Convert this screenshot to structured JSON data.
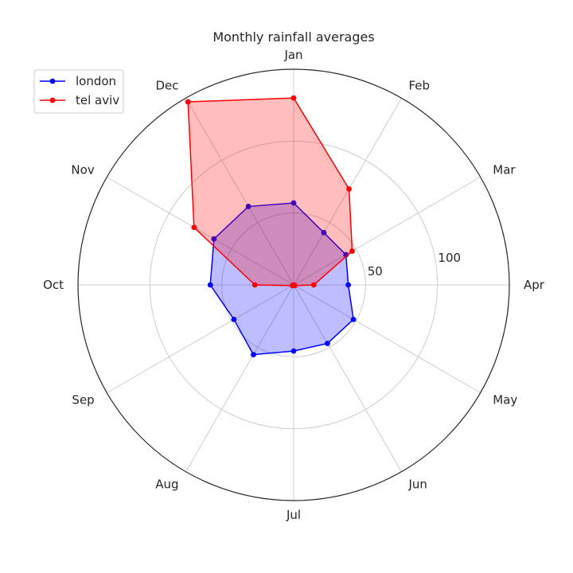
{
  "chart_data": {
    "type": "radar",
    "title": "Monthly rainfall averages",
    "categories": [
      "Jan",
      "Feb",
      "Mar",
      "Apr",
      "May",
      "Jun",
      "Jul",
      "Aug",
      "Sep",
      "Oct",
      "Nov",
      "Dec"
    ],
    "r_ticks": [
      50,
      100
    ],
    "r_tick_labels": [
      "50",
      "100"
    ],
    "rlim": [
      0,
      150
    ],
    "grid": true,
    "legend_position": "top-left",
    "series": [
      {
        "name": "london",
        "color": "#0000ff",
        "values": [
          57,
          42,
          42,
          38,
          48,
          47,
          46,
          56,
          48,
          58,
          64,
          63
        ]
      },
      {
        "name": "tel aviv",
        "color": "#ff0000",
        "values": [
          130,
          77,
          47,
          14,
          1,
          0,
          0,
          0,
          1,
          27,
          80,
          147
        ]
      }
    ]
  }
}
